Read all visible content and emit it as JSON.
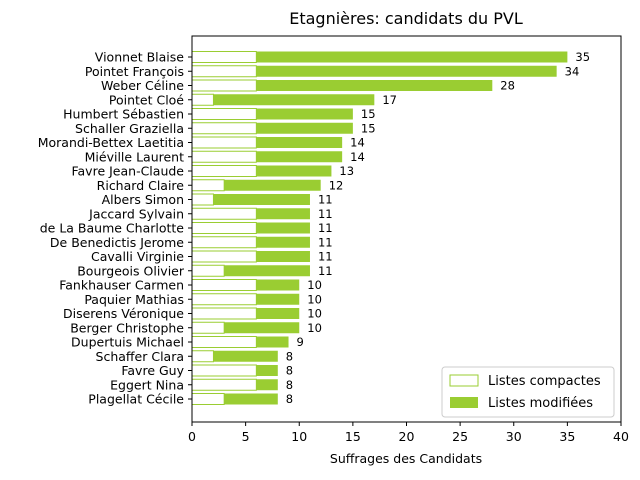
{
  "chart_data": {
    "type": "bar",
    "orientation": "horizontal",
    "stacked": true,
    "title": "Etagnières: candidats du PVL",
    "xlabel": "Suffrages des Candidats",
    "ylabel": "",
    "xlim": [
      0,
      40
    ],
    "xticks": [
      0,
      5,
      10,
      15,
      20,
      25,
      30,
      35,
      40
    ],
    "categories": [
      "Vionnet Blaise",
      "Pointet François",
      "Weber Céline",
      "Pointet Cloé",
      "Humbert Sébastien",
      "Schaller Graziella",
      "Morandi-Bettex Laetitia",
      "Miéville Laurent",
      "Favre Jean-Claude",
      "Richard Claire",
      "Albers Simon",
      "Jaccard Sylvain",
      "de La Baume Charlotte",
      "De Benedictis Jerome",
      "Cavalli Virginie",
      "Bourgeois Olivier",
      "Fankhauser Carmen",
      "Paquier Mathias",
      "Diserens Véronique",
      "Berger Christophe",
      "Dupertuis Michael",
      "Schaffer Clara",
      "Favre Guy",
      "Eggert Nina",
      "Plagellat Cécile"
    ],
    "series": [
      {
        "name": "Listes compactes",
        "style": "outline",
        "color": "#9acd32",
        "values": [
          6,
          6,
          6,
          2,
          6,
          6,
          6,
          6,
          6,
          3,
          2,
          6,
          6,
          6,
          6,
          3,
          6,
          6,
          6,
          3,
          6,
          2,
          6,
          6,
          3
        ]
      },
      {
        "name": "Listes modifiées",
        "style": "filled",
        "color": "#9acd32",
        "values": [
          29,
          28,
          22,
          15,
          9,
          9,
          8,
          8,
          7,
          9,
          9,
          5,
          5,
          5,
          5,
          8,
          4,
          4,
          4,
          7,
          3,
          6,
          2,
          2,
          5
        ]
      }
    ],
    "totals": [
      35,
      34,
      28,
      17,
      15,
      15,
      14,
      14,
      13,
      12,
      11,
      11,
      11,
      11,
      11,
      11,
      10,
      10,
      10,
      10,
      9,
      8,
      8,
      8,
      8
    ],
    "legend": {
      "position": "lower-right"
    },
    "grid": false
  }
}
